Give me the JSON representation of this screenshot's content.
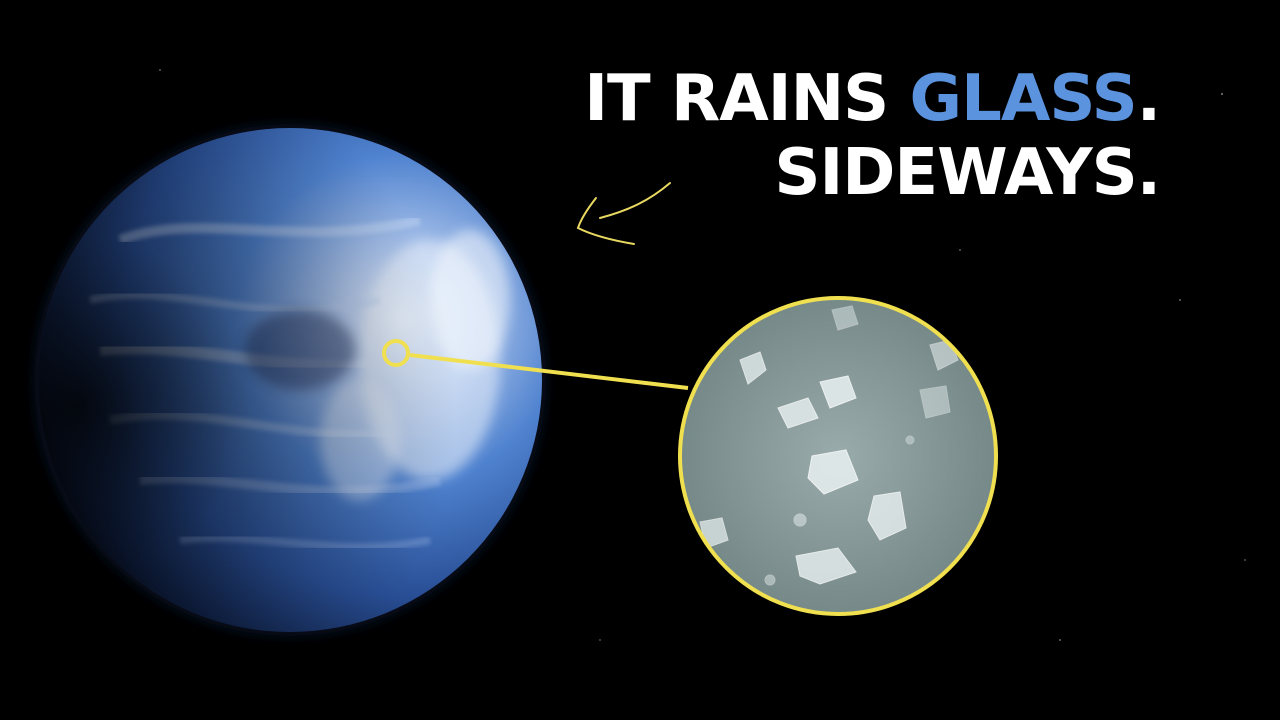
{
  "headline": {
    "line1_prefix": "IT RAINS ",
    "line1_accent": "GLASS",
    "line1_suffix": ".",
    "line2": "SIDEWAYS."
  },
  "colors": {
    "background": "#000000",
    "headline_text": "#ffffff",
    "headline_accent": "#5b93de",
    "callout_outline": "#f0e050",
    "arrow_stroke": "#e8d860",
    "planet_base": "#2a5fb0",
    "planet_highlight": "#dce8f7",
    "inset_fill": "#8a9c9c"
  },
  "icons": {
    "arrow": "curved-arrow-icon",
    "callout_ring": "target-ring-icon"
  }
}
